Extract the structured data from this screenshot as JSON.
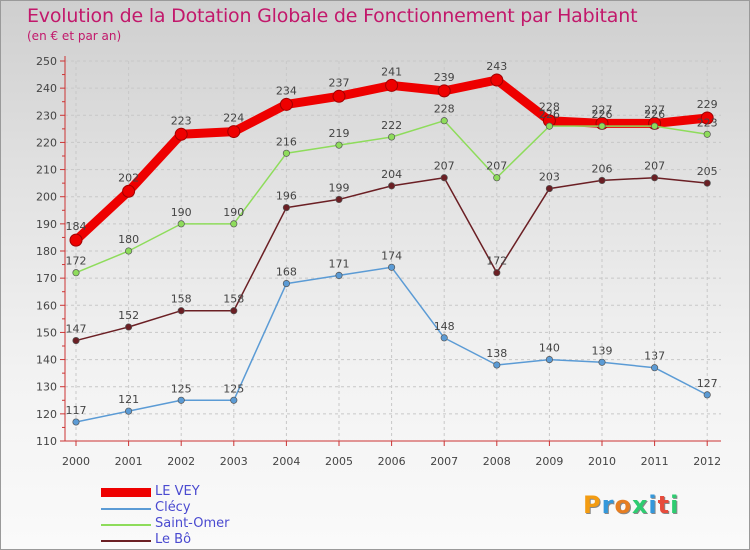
{
  "title": "Evolution de la Dotation Globale de Fonctionnement par Habitant",
  "subtitle": "(en € et par an)",
  "logo": {
    "text": "Proxiti",
    "letters": [
      {
        "ch": "P",
        "color": "#f39c12"
      },
      {
        "ch": "r",
        "color": "#3498db"
      },
      {
        "ch": "o",
        "color": "#e67e22"
      },
      {
        "ch": "x",
        "color": "#2ecc71"
      },
      {
        "ch": "i",
        "color": "#3498db"
      },
      {
        "ch": "t",
        "color": "#e74c3c"
      },
      {
        "ch": "i",
        "color": "#2ecc71"
      }
    ]
  },
  "chart_data": {
    "type": "line",
    "title": "Evolution de la Dotation Globale de Fonctionnement par Habitant",
    "subtitle": "(en € et par an)",
    "xlabel": "",
    "ylabel": "",
    "x": [
      "2000",
      "2001",
      "2002",
      "2003",
      "2004",
      "2005",
      "2006",
      "2007",
      "2008",
      "2009",
      "2010",
      "2011",
      "2012"
    ],
    "ylim": [
      110,
      250
    ],
    "yticks": [
      110,
      120,
      130,
      140,
      150,
      160,
      170,
      180,
      190,
      200,
      210,
      220,
      230,
      240,
      250
    ],
    "grid": true,
    "legend_position": "bottom-left",
    "series": [
      {
        "name": "LE VEY",
        "color": "#ee0000",
        "emphasis": true,
        "values": [
          184,
          202,
          223,
          224,
          234,
          237,
          241,
          239,
          243,
          228,
          227,
          227,
          229
        ]
      },
      {
        "name": "Clécy",
        "color": "#5b9bd5",
        "emphasis": false,
        "values": [
          117,
          121,
          125,
          125,
          168,
          171,
          174,
          148,
          138,
          140,
          139,
          137,
          127
        ]
      },
      {
        "name": "Saint-Omer",
        "color": "#8edc5b",
        "emphasis": false,
        "values": [
          172,
          180,
          190,
          190,
          216,
          219,
          222,
          228,
          207,
          226,
          226,
          226,
          223
        ]
      },
      {
        "name": "Le Bô",
        "color": "#6b1f24",
        "emphasis": false,
        "values": [
          147,
          152,
          158,
          158,
          196,
          199,
          204,
          207,
          172,
          203,
          206,
          207,
          205
        ]
      }
    ],
    "draw_order": [
      0,
      3,
      2,
      1
    ]
  }
}
